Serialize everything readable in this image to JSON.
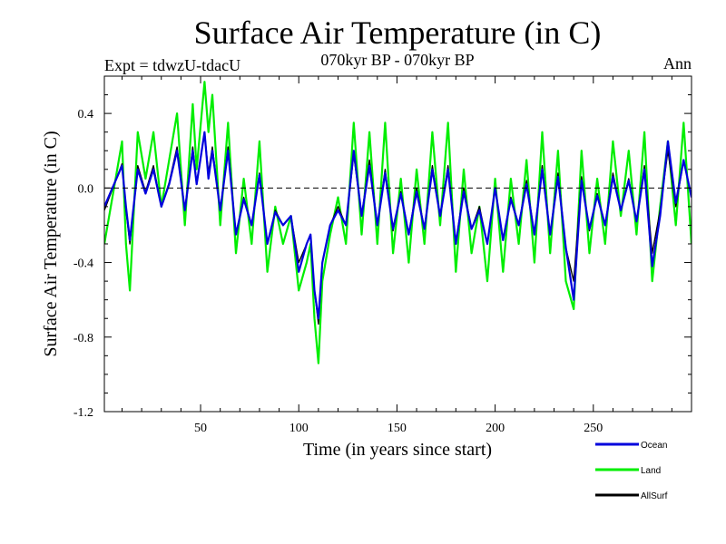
{
  "chart_data": {
    "type": "line",
    "title": "Surface Air Temperature (in C)",
    "subtitle": "070kyr BP - 070kyr BP",
    "left_label": "Expt = tdwzU-tdacU",
    "right_label": "Ann",
    "xlabel": "Time (in years since start)",
    "ylabel": "Surface Air Temperature (in C)",
    "xlim": [
      1,
      300
    ],
    "ylim": [
      -1.2,
      0.6
    ],
    "x_ticks": [
      50,
      100,
      150,
      200,
      250
    ],
    "x_tick_labels": [
      "50",
      "100",
      "150",
      "200",
      "250"
    ],
    "y_ticks": [
      -1.2,
      -0.8,
      -0.4,
      0.0,
      0.4
    ],
    "y_tick_labels": [
      "-1.2",
      "-0.8",
      "-0.4",
      "0.0",
      "0.4"
    ],
    "reference_line": 0.0,
    "legend_placement": "bottom-right",
    "series": [
      {
        "name": "Land",
        "color": "#00ee00",
        "x": [
          1,
          10,
          12,
          14,
          18,
          22,
          26,
          30,
          34,
          38,
          42,
          46,
          48,
          52,
          54,
          56,
          60,
          64,
          68,
          72,
          76,
          80,
          84,
          88,
          92,
          96,
          100,
          104,
          106,
          108,
          110,
          112,
          116,
          120,
          124,
          128,
          132,
          136,
          140,
          144,
          148,
          152,
          156,
          160,
          164,
          168,
          172,
          176,
          180,
          184,
          188,
          192,
          196,
          200,
          204,
          208,
          212,
          216,
          220,
          224,
          228,
          232,
          236,
          240,
          244,
          248,
          252,
          256,
          260,
          264,
          268,
          272,
          276,
          280,
          284,
          288,
          292,
          296,
          300
        ],
        "values": [
          -0.3,
          0.25,
          -0.3,
          -0.55,
          0.3,
          0.05,
          0.3,
          -0.1,
          0.15,
          0.4,
          -0.2,
          0.45,
          0.1,
          0.57,
          0.3,
          0.5,
          -0.2,
          0.35,
          -0.35,
          0.05,
          -0.3,
          0.25,
          -0.45,
          -0.1,
          -0.3,
          -0.15,
          -0.55,
          -0.4,
          -0.3,
          -0.7,
          -0.94,
          -0.5,
          -0.25,
          -0.05,
          -0.3,
          0.35,
          -0.25,
          0.3,
          -0.3,
          0.35,
          -0.35,
          0.05,
          -0.4,
          0.1,
          -0.3,
          0.3,
          -0.2,
          0.35,
          -0.45,
          0.1,
          -0.35,
          -0.1,
          -0.5,
          0.05,
          -0.45,
          0.05,
          -0.3,
          0.15,
          -0.4,
          0.3,
          -0.35,
          0.2,
          -0.5,
          -0.65,
          0.2,
          -0.35,
          0.05,
          -0.3,
          0.25,
          -0.15,
          0.2,
          -0.25,
          0.3,
          -0.5,
          -0.1,
          0.25,
          -0.2,
          0.35,
          -0.3
        ]
      },
      {
        "name": "AllSurf",
        "color": "#000000",
        "x": [
          1,
          10,
          12,
          14,
          18,
          22,
          26,
          30,
          34,
          38,
          42,
          46,
          48,
          52,
          54,
          56,
          60,
          64,
          68,
          72,
          76,
          80,
          84,
          88,
          92,
          96,
          100,
          104,
          106,
          108,
          110,
          112,
          116,
          120,
          124,
          128,
          132,
          136,
          140,
          144,
          148,
          152,
          156,
          160,
          164,
          168,
          172,
          176,
          180,
          184,
          188,
          192,
          196,
          200,
          204,
          208,
          212,
          216,
          220,
          224,
          228,
          232,
          236,
          240,
          244,
          248,
          252,
          256,
          260,
          264,
          268,
          272,
          276,
          280,
          284,
          288,
          292,
          296,
          300
        ],
        "values": [
          -0.12,
          0.13,
          -0.12,
          -0.3,
          0.12,
          -0.02,
          0.12,
          -0.1,
          0.03,
          0.22,
          -0.12,
          0.22,
          0.03,
          0.3,
          0.08,
          0.22,
          -0.12,
          0.22,
          -0.25,
          -0.05,
          -0.2,
          0.08,
          -0.3,
          -0.12,
          -0.2,
          -0.15,
          -0.4,
          -0.3,
          -0.25,
          -0.55,
          -0.73,
          -0.4,
          -0.2,
          -0.1,
          -0.2,
          0.18,
          -0.15,
          0.15,
          -0.2,
          0.1,
          -0.23,
          -0.02,
          -0.25,
          0.0,
          -0.22,
          0.12,
          -0.15,
          0.12,
          -0.3,
          0.0,
          -0.22,
          -0.1,
          -0.3,
          0.0,
          -0.28,
          -0.05,
          -0.2,
          0.04,
          -0.25,
          0.12,
          -0.25,
          0.08,
          -0.32,
          -0.5,
          0.06,
          -0.23,
          -0.03,
          -0.2,
          0.08,
          -0.12,
          0.05,
          -0.18,
          0.12,
          -0.35,
          -0.12,
          0.2,
          -0.1,
          0.15,
          -0.05
        ]
      },
      {
        "name": "Ocean",
        "color": "#0000dd",
        "x": [
          1,
          10,
          12,
          14,
          18,
          22,
          26,
          30,
          34,
          38,
          42,
          46,
          48,
          52,
          54,
          56,
          60,
          64,
          68,
          72,
          76,
          80,
          84,
          88,
          92,
          96,
          100,
          104,
          106,
          108,
          110,
          112,
          116,
          120,
          124,
          128,
          132,
          136,
          140,
          144,
          148,
          152,
          156,
          160,
          164,
          168,
          172,
          176,
          180,
          184,
          188,
          192,
          196,
          200,
          204,
          208,
          212,
          216,
          220,
          224,
          228,
          232,
          236,
          240,
          244,
          248,
          252,
          256,
          260,
          264,
          268,
          272,
          276,
          280,
          284,
          288,
          292,
          296,
          300
        ],
        "values": [
          -0.1,
          0.12,
          -0.1,
          -0.28,
          0.1,
          -0.03,
          0.1,
          -0.1,
          0.02,
          0.2,
          -0.12,
          0.2,
          0.02,
          0.3,
          0.05,
          0.2,
          -0.12,
          0.2,
          -0.25,
          -0.06,
          -0.2,
          0.07,
          -0.3,
          -0.13,
          -0.2,
          -0.15,
          -0.45,
          -0.3,
          -0.25,
          -0.55,
          -0.7,
          -0.4,
          -0.2,
          -0.12,
          -0.2,
          0.2,
          -0.15,
          0.12,
          -0.2,
          0.08,
          -0.22,
          -0.03,
          -0.25,
          -0.02,
          -0.22,
          0.1,
          -0.15,
          0.1,
          -0.3,
          -0.02,
          -0.22,
          -0.12,
          -0.3,
          0.0,
          -0.28,
          -0.06,
          -0.2,
          0.02,
          -0.25,
          0.1,
          -0.25,
          0.06,
          -0.32,
          -0.6,
          0.04,
          -0.22,
          -0.04,
          -0.2,
          0.06,
          -0.12,
          0.04,
          -0.18,
          0.1,
          -0.42,
          -0.15,
          0.25,
          -0.08,
          0.15,
          -0.05
        ]
      }
    ]
  }
}
